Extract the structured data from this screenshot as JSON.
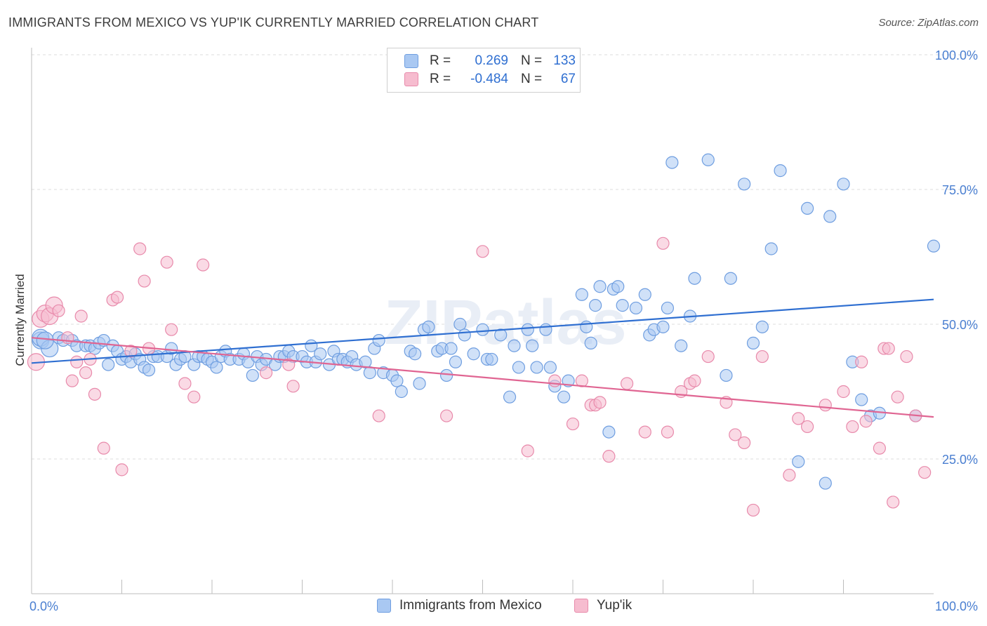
{
  "title": "IMMIGRANTS FROM MEXICO VS YUP'IK CURRENTLY MARRIED CORRELATION CHART",
  "source": "Source: ZipAtlas.com",
  "watermark": "ZIPatlas",
  "legend": {
    "rows": [
      {
        "r_label": "R =",
        "r_value": "0.269",
        "n_label": "N =",
        "n_value": "133",
        "color": "#a9c8f2",
        "border": "#6f9ee0"
      },
      {
        "r_label": "R =",
        "r_value": "-0.484",
        "n_label": "N =",
        "n_value": "67",
        "color": "#f6bccf",
        "border": "#e88aab"
      }
    ]
  },
  "bottom_legend": [
    {
      "label": "Immigrants from Mexico",
      "color": "#a9c8f2",
      "border": "#6f9ee0"
    },
    {
      "label": "Yup'ik",
      "color": "#f6bccf",
      "border": "#e88aab"
    }
  ],
  "chart_data": {
    "type": "scatter",
    "title": "IMMIGRANTS FROM MEXICO VS YUP'IK CURRENTLY MARRIED CORRELATION CHART",
    "xlabel": "",
    "ylabel": "Currently Married",
    "xlim": [
      0,
      100
    ],
    "ylim": [
      0,
      100
    ],
    "x_tick_labels": [
      "0.0%",
      "100.0%"
    ],
    "y_tick_labels": [
      "25.0%",
      "50.0%",
      "75.0%",
      "100.0%"
    ],
    "y_ticks": [
      25,
      50,
      75,
      100
    ],
    "grid": "horizontal dashed",
    "legend_position": "top-center",
    "series": [
      {
        "name": "Immigrants from Mexico",
        "color": "#6f9ee0",
        "fill": "#a9c8f2",
        "trend": {
          "x": [
            0,
            100
          ],
          "y": [
            42.8,
            54.6
          ],
          "color": "#2f6fd1"
        },
        "points": [
          [
            1,
            47
          ],
          [
            1,
            47.5
          ],
          [
            2,
            45.5
          ],
          [
            1.5,
            47
          ],
          [
            3,
            47.5
          ],
          [
            3.5,
            47
          ],
          [
            4.5,
            47
          ],
          [
            5,
            46
          ],
          [
            6,
            46
          ],
          [
            6.5,
            46
          ],
          [
            7,
            45.5
          ],
          [
            7.5,
            46.5
          ],
          [
            8,
            47
          ],
          [
            9,
            46
          ],
          [
            9.5,
            45
          ],
          [
            8.5,
            42.5
          ],
          [
            10,
            43.5
          ],
          [
            10.5,
            44
          ],
          [
            11,
            43
          ],
          [
            11.5,
            44.5
          ],
          [
            12,
            43.5
          ],
          [
            12.5,
            42
          ],
          [
            13,
            41.5
          ],
          [
            13.5,
            44
          ],
          [
            14,
            44
          ],
          [
            15,
            44
          ],
          [
            15.5,
            45.5
          ],
          [
            16,
            42.5
          ],
          [
            16.5,
            43.5
          ],
          [
            17,
            44
          ],
          [
            18,
            42.5
          ],
          [
            18.5,
            44
          ],
          [
            19,
            44
          ],
          [
            19.5,
            43.5
          ],
          [
            20,
            43
          ],
          [
            20.5,
            42
          ],
          [
            21,
            44
          ],
          [
            21.5,
            45
          ],
          [
            22,
            43.5
          ],
          [
            23,
            43.5
          ],
          [
            23.5,
            44.5
          ],
          [
            24,
            43
          ],
          [
            24.5,
            40.5
          ],
          [
            25,
            44
          ],
          [
            25.5,
            42.5
          ],
          [
            26,
            43.5
          ],
          [
            27,
            42.5
          ],
          [
            27.5,
            44
          ],
          [
            28,
            44
          ],
          [
            28.5,
            45
          ],
          [
            29,
            44
          ],
          [
            30,
            44
          ],
          [
            30.5,
            43
          ],
          [
            31,
            46
          ],
          [
            31.5,
            43
          ],
          [
            32,
            44.5
          ],
          [
            33,
            42.5
          ],
          [
            33.5,
            45
          ],
          [
            34,
            43.5
          ],
          [
            34.5,
            43.5
          ],
          [
            35,
            43
          ],
          [
            35.5,
            44
          ],
          [
            36,
            42.5
          ],
          [
            37,
            43
          ],
          [
            37.5,
            41
          ],
          [
            38,
            45.5
          ],
          [
            38.5,
            47
          ],
          [
            39,
            41
          ],
          [
            40,
            40.5
          ],
          [
            40.5,
            39.5
          ],
          [
            41,
            37.5
          ],
          [
            42,
            45
          ],
          [
            42.5,
            44.5
          ],
          [
            43,
            39
          ],
          [
            43.5,
            49
          ],
          [
            44,
            49.5
          ],
          [
            45,
            45
          ],
          [
            45.5,
            45.5
          ],
          [
            46,
            40.5
          ],
          [
            46.5,
            45.5
          ],
          [
            47,
            43
          ],
          [
            47.5,
            50
          ],
          [
            48,
            48
          ],
          [
            49,
            44.5
          ],
          [
            50,
            49
          ],
          [
            50.5,
            43.5
          ],
          [
            51,
            43.5
          ],
          [
            52,
            48
          ],
          [
            53,
            36.5
          ],
          [
            53.5,
            46
          ],
          [
            54,
            42
          ],
          [
            55,
            49
          ],
          [
            55.5,
            46
          ],
          [
            56,
            42
          ],
          [
            57,
            49
          ],
          [
            57.5,
            42
          ],
          [
            58,
            38.5
          ],
          [
            59,
            36.5
          ],
          [
            59.5,
            39.5
          ],
          [
            61,
            55.5
          ],
          [
            61.5,
            49.5
          ],
          [
            62,
            46.5
          ],
          [
            62.5,
            53.5
          ],
          [
            63,
            57
          ],
          [
            64,
            30
          ],
          [
            64.5,
            56.5
          ],
          [
            65,
            57
          ],
          [
            65.5,
            53.5
          ],
          [
            67,
            53
          ],
          [
            68,
            55.5
          ],
          [
            68.5,
            48
          ],
          [
            69,
            49
          ],
          [
            70,
            49.5
          ],
          [
            70.5,
            53
          ],
          [
            71,
            80
          ],
          [
            72,
            46
          ],
          [
            73,
            51.5
          ],
          [
            73.5,
            58.5
          ],
          [
            75,
            80.5
          ],
          [
            77,
            40.5
          ],
          [
            77.5,
            58.5
          ],
          [
            79,
            76
          ],
          [
            80,
            46.5
          ],
          [
            81,
            49.5
          ],
          [
            82,
            64
          ],
          [
            83,
            78.5
          ],
          [
            85,
            24.5
          ],
          [
            86,
            71.5
          ],
          [
            88,
            20.5
          ],
          [
            88.5,
            70
          ],
          [
            90,
            76
          ],
          [
            91,
            43
          ],
          [
            92,
            36
          ],
          [
            93,
            33
          ],
          [
            94,
            33.5
          ],
          [
            98,
            33
          ],
          [
            100,
            64.5
          ]
        ]
      },
      {
        "name": "Yup'ik",
        "color": "#e88aab",
        "fill": "#f6bccf",
        "trend": {
          "x": [
            0,
            100
          ],
          "y": [
            47.5,
            32.8
          ],
          "color": "#e06592"
        },
        "points": [
          [
            0.5,
            43
          ],
          [
            1,
            51
          ],
          [
            1.5,
            52
          ],
          [
            2,
            51.5
          ],
          [
            2.5,
            53.5
          ],
          [
            3,
            52.5
          ],
          [
            4,
            47.5
          ],
          [
            4.5,
            39.5
          ],
          [
            5,
            43
          ],
          [
            5.5,
            51.5
          ],
          [
            6,
            41
          ],
          [
            6.5,
            43.5
          ],
          [
            7,
            37
          ],
          [
            8,
            27
          ],
          [
            9,
            54.5
          ],
          [
            9.5,
            55
          ],
          [
            10,
            23
          ],
          [
            11,
            45
          ],
          [
            12,
            64
          ],
          [
            12.5,
            58
          ],
          [
            13,
            45.5
          ],
          [
            15,
            61.5
          ],
          [
            15.5,
            49
          ],
          [
            17,
            39
          ],
          [
            18,
            36.5
          ],
          [
            19,
            61
          ],
          [
            26,
            41
          ],
          [
            28.5,
            42.5
          ],
          [
            29,
            38.5
          ],
          [
            38.5,
            33
          ],
          [
            46,
            33
          ],
          [
            50,
            63.5
          ],
          [
            55,
            26.5
          ],
          [
            58,
            39.5
          ],
          [
            60,
            31.5
          ],
          [
            61,
            39.5
          ],
          [
            62,
            35
          ],
          [
            62.5,
            35
          ],
          [
            63,
            35.5
          ],
          [
            64,
            25.5
          ],
          [
            66,
            39
          ],
          [
            68,
            30
          ],
          [
            70,
            65
          ],
          [
            70.5,
            30
          ],
          [
            72,
            37.5
          ],
          [
            73,
            39
          ],
          [
            73.5,
            39.5
          ],
          [
            75,
            44
          ],
          [
            77,
            35.5
          ],
          [
            78,
            29.5
          ],
          [
            79,
            28
          ],
          [
            80,
            15.5
          ],
          [
            81,
            44
          ],
          [
            84,
            22
          ],
          [
            85,
            32.5
          ],
          [
            86,
            31
          ],
          [
            88,
            35
          ],
          [
            90,
            37.5
          ],
          [
            91,
            31
          ],
          [
            92,
            43
          ],
          [
            92.5,
            32
          ],
          [
            94,
            27
          ],
          [
            94.5,
            45.5
          ],
          [
            95,
            45.5
          ],
          [
            95.5,
            17
          ],
          [
            96,
            36.5
          ],
          [
            97,
            44
          ],
          [
            98,
            33
          ],
          [
            99,
            22.5
          ]
        ]
      }
    ]
  }
}
